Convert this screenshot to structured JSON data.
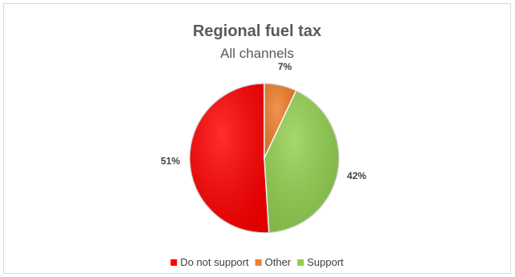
{
  "chart_data": {
    "type": "pie",
    "title": "Regional fuel tax",
    "subtitle": "All channels",
    "slices": [
      {
        "name": "Do not support",
        "value": 51,
        "label": "51%",
        "color": "#ff0000"
      },
      {
        "name": "Other",
        "value": 7,
        "label": "7%",
        "color": "#f07d2a"
      },
      {
        "name": "Support",
        "value": 42,
        "label": "42%",
        "color": "#92d050"
      }
    ],
    "legend_position": "bottom"
  }
}
